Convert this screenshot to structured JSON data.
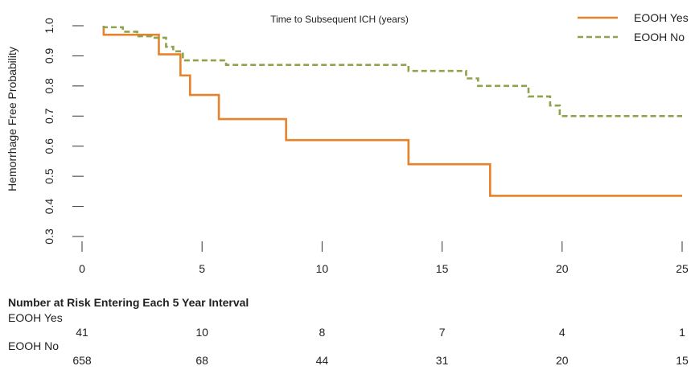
{
  "chart_data": {
    "type": "line",
    "step": true,
    "title": "Time to Subsequent ICH (years)",
    "xlabel": "",
    "ylabel": "Hemorrhage Free Probability",
    "xlim": [
      0,
      25
    ],
    "ylim": [
      0.3,
      1.0
    ],
    "xticks": [
      0,
      5,
      10,
      15,
      20,
      25
    ],
    "yticks": [
      0.3,
      0.4,
      0.5,
      0.6,
      0.7,
      0.8,
      0.9,
      1.0
    ],
    "xtick_labels": [
      "0",
      "5",
      "10",
      "15",
      "20",
      "25"
    ],
    "ytick_labels": [
      "0.3",
      "0.4",
      "0.5",
      "0.6",
      "0.7",
      "0.8",
      "0.9",
      "1.0"
    ],
    "grid": false,
    "legend_position": "top-right",
    "series": [
      {
        "name": "EOOH Yes",
        "color": "#e8822a",
        "dash": "solid",
        "x": [
          0.9,
          0.9,
          3.2,
          4.1,
          4.5,
          5.7,
          8.5,
          13.6,
          17.0,
          25.0
        ],
        "y": [
          1.0,
          0.97,
          0.905,
          0.835,
          0.77,
          0.69,
          0.62,
          0.54,
          0.435,
          0.435
        ]
      },
      {
        "name": "EOOH No",
        "color": "#8ea34c",
        "dash": "dashed",
        "x": [
          0.9,
          1.2,
          1.7,
          2.3,
          2.9,
          3.5,
          3.8,
          4.2,
          6.0,
          13.6,
          16.0,
          16.5,
          18.6,
          19.5,
          19.9,
          25.0
        ],
        "y": [
          1.0,
          0.995,
          0.98,
          0.965,
          0.96,
          0.93,
          0.915,
          0.885,
          0.87,
          0.85,
          0.825,
          0.8,
          0.765,
          0.735,
          0.7,
          0.7
        ]
      }
    ]
  },
  "risk_table": {
    "title": "Number at Risk Entering Each 5 Year Interval",
    "groups": [
      {
        "label": "EOOH Yes",
        "values": [
          "41",
          "10",
          "8",
          "7",
          "4",
          "1"
        ]
      },
      {
        "label": "EOOH No",
        "values": [
          "658",
          "68",
          "44",
          "31",
          "20",
          "15"
        ]
      }
    ]
  }
}
